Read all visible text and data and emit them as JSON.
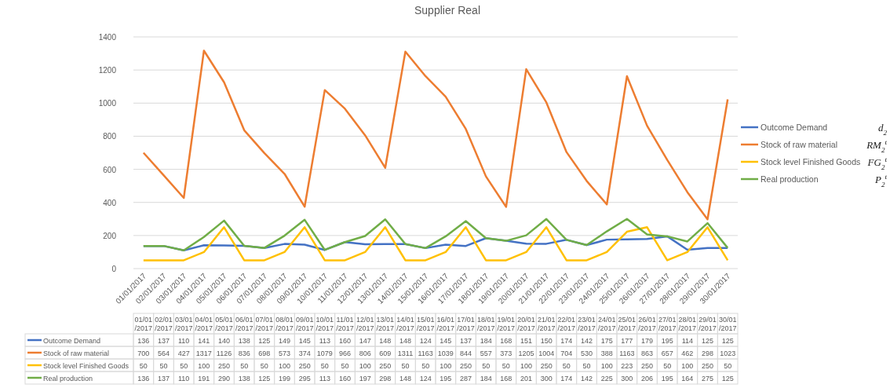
{
  "chart_data": {
    "type": "line",
    "title": "Supplier Real",
    "categories": [
      "01/01/2017",
      "02/01/2017",
      "03/01/2017",
      "04/01/2017",
      "05/01/2017",
      "06/01/2017",
      "07/01/2017",
      "08/01/2017",
      "09/01/2017",
      "10/01/2017",
      "11/01/2017",
      "12/01/2017",
      "13/01/2017",
      "14/01/2017",
      "15/01/2017",
      "16/01/2017",
      "17/01/2017",
      "18/01/2017",
      "19/01/2017",
      "20/01/2017",
      "21/01/2017",
      "22/01/2017",
      "23/01/2017",
      "24/01/2017",
      "25/01/2017",
      "26/01/2017",
      "27/01/2017",
      "28/01/2017",
      "29/01/2017",
      "30/01/2017"
    ],
    "series": [
      {
        "name": "Outcome Demand",
        "color": "#4472c4",
        "values": [
          136,
          137,
          110,
          141,
          140,
          138,
          125,
          149,
          145,
          113,
          160,
          147,
          148,
          148,
          124,
          145,
          137,
          184,
          168,
          151,
          150,
          174,
          142,
          175,
          177,
          179,
          195,
          114,
          125,
          125
        ]
      },
      {
        "name": "Stock of raw material",
        "color": "#ed7d31",
        "values": [
          700,
          564,
          427,
          1317,
          1126,
          836,
          698,
          573,
          374,
          1079,
          966,
          806,
          609,
          1311,
          1163,
          1039,
          844,
          557,
          373,
          1205,
          1004,
          704,
          530,
          388,
          1163,
          863,
          657,
          462,
          298,
          1023
        ]
      },
      {
        "name": "Stock level Finished Goods",
        "color": "#ffc000",
        "values": [
          50,
          50,
          50,
          100,
          250,
          50,
          50,
          100,
          250,
          50,
          50,
          100,
          250,
          50,
          50,
          100,
          250,
          50,
          50,
          100,
          250,
          50,
          50,
          100,
          223,
          250,
          50,
          100,
          250,
          50
        ]
      },
      {
        "name": "Real production",
        "color": "#70ad47",
        "values": [
          136,
          137,
          110,
          191,
          290,
          138,
          125,
          199,
          295,
          113,
          160,
          197,
          298,
          148,
          124,
          195,
          287,
          184,
          168,
          201,
          300,
          174,
          142,
          225,
          300,
          206,
          195,
          164,
          275,
          125
        ]
      }
    ],
    "annotations": [
      "d$_{2}$",
      "RM$_{2}$$^{t}$",
      "FG$_{2}$$^{t}$",
      "P$_{2}$$^{t}$"
    ],
    "ylim": [
      0,
      1400
    ],
    "yticks": [
      0,
      200,
      400,
      600,
      800,
      1000,
      1200,
      1400
    ],
    "grid": "y",
    "legend": "right",
    "data_labels": true,
    "marker": "none",
    "line_style": "solid"
  }
}
